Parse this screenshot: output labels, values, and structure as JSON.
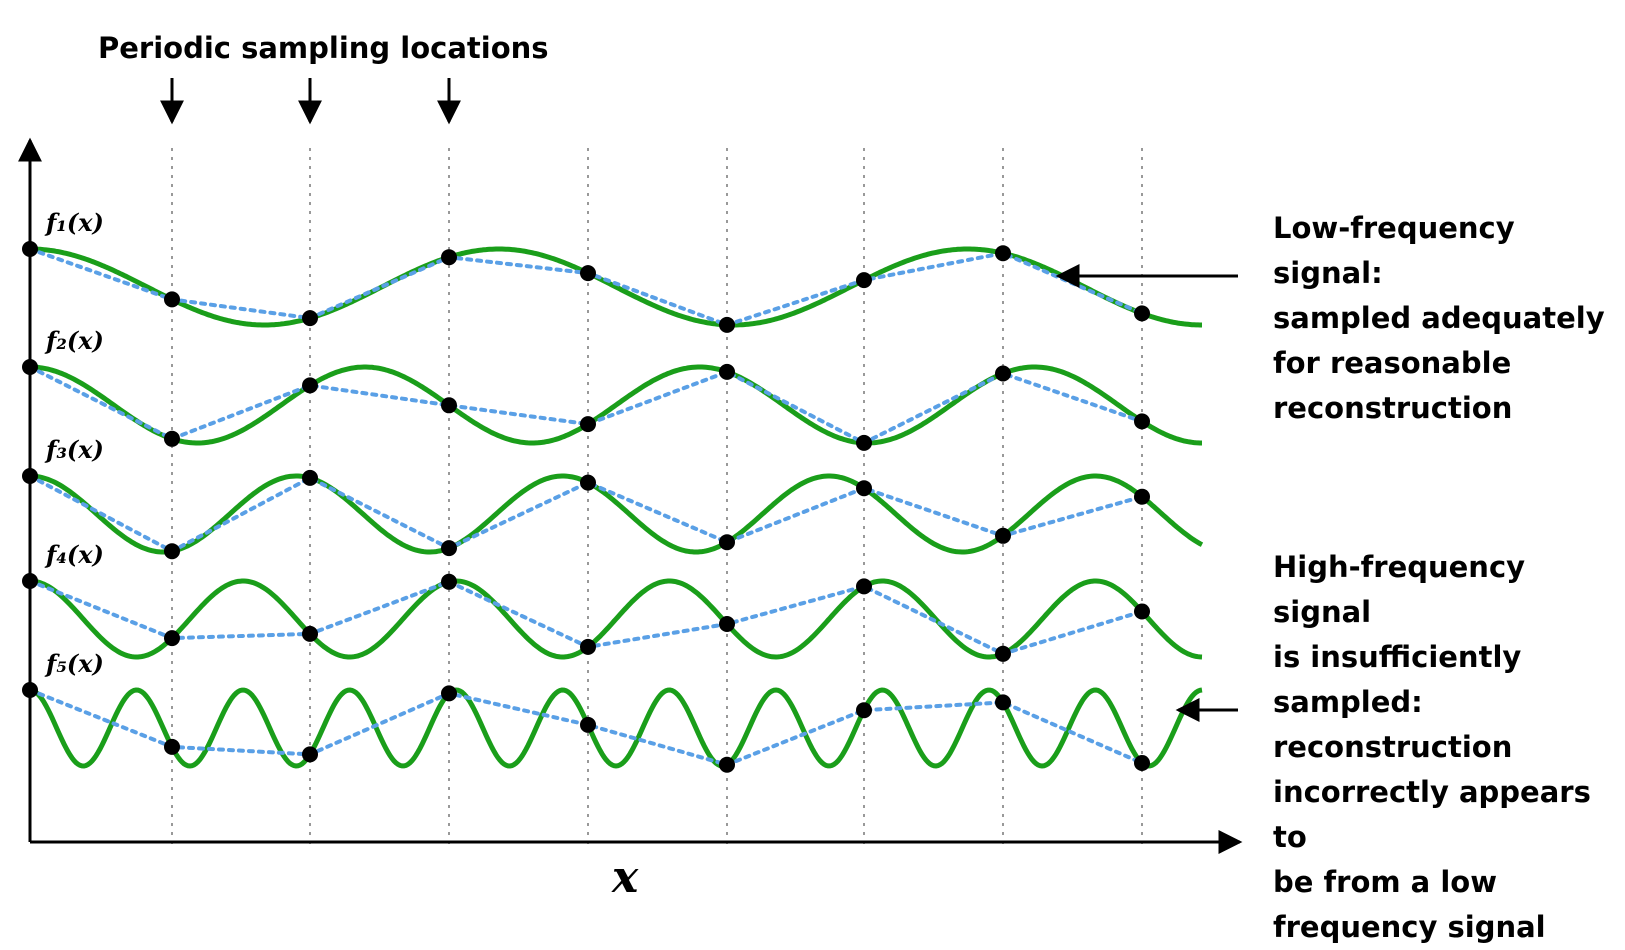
{
  "title": "Periodic sampling locations",
  "x_axis_label": "x",
  "colors": {
    "signal": "#1a9e1a",
    "reconstruction": "#5aa0e6",
    "sample": "#000000",
    "gridline": "#999999"
  },
  "signals": [
    {
      "label": "f₁(x)",
      "baseline": 0,
      "cycles": 2.5,
      "phase": 0.0
    },
    {
      "label": "f₂(x)",
      "baseline": 1,
      "cycles": 3.5,
      "phase": 0.0
    },
    {
      "label": "f₃(x)",
      "baseline": 2,
      "cycles": 4.4,
      "phase": 0.0
    },
    {
      "label": "f₄(x)",
      "baseline": 3,
      "cycles": 5.5,
      "phase": 0.0
    },
    {
      "label": "f₅(x)",
      "baseline": 4,
      "cycles": 11.0,
      "phase": 0.0
    }
  ],
  "sample_count": 9,
  "annotations": {
    "low": "Low-frequency signal:\nsampled adequately\nfor reasonable\nreconstruction",
    "high": "High-frequency signal\nis insufficiently\nsampled:\nreconstruction\nincorrectly appears to\nbe from a low\nfrequency signal"
  }
}
